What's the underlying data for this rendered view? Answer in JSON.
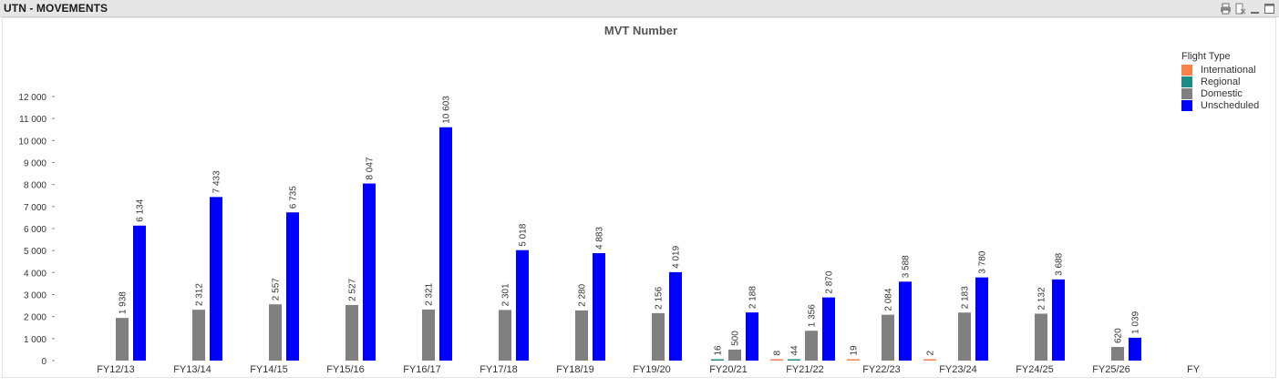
{
  "window": {
    "title": "UTN - MOVEMENTS",
    "icons": [
      "print-icon",
      "clear-selection-icon",
      "minimize-icon",
      "maximize-icon"
    ]
  },
  "chart_data": {
    "type": "bar",
    "title": "MVT Number",
    "xlabel": "FY",
    "ylabel": "",
    "legend_title": "Flight Type",
    "legend_position": "top-right",
    "ylim": [
      0,
      12000
    ],
    "yticks": [
      "0",
      "1 000",
      "2 000",
      "3 000",
      "4 000",
      "5 000",
      "6 000",
      "7 000",
      "8 000",
      "9 000",
      "10 000",
      "11 000",
      "12 000"
    ],
    "grid": false,
    "categories": [
      "FY12/13",
      "FY13/14",
      "FY14/15",
      "FY15/16",
      "FY16/17",
      "FY17/18",
      "FY18/19",
      "FY19/20",
      "FY20/21",
      "FY21/22",
      "FY22/23",
      "FY23/24",
      "FY24/25",
      "FY25/26"
    ],
    "series": [
      {
        "name": "International",
        "color": "#f5834a",
        "values": [
          null,
          null,
          null,
          null,
          null,
          null,
          null,
          null,
          null,
          8,
          19,
          2,
          null,
          null
        ],
        "labels": [
          "",
          "",
          "",
          "",
          "",
          "",
          "",
          "",
          "",
          "8",
          "19",
          "2",
          "",
          ""
        ]
      },
      {
        "name": "Regional",
        "color": "#1d8a84",
        "values": [
          null,
          null,
          null,
          null,
          null,
          null,
          null,
          null,
          16,
          44,
          null,
          null,
          null,
          null
        ],
        "labels": [
          "",
          "",
          "",
          "",
          "",
          "",
          "",
          "",
          "16",
          "44",
          "",
          "",
          "",
          ""
        ]
      },
      {
        "name": "Domestic",
        "color": "#808080",
        "values": [
          1938,
          2312,
          2557,
          2527,
          2321,
          2301,
          2280,
          2156,
          500,
          1356,
          2084,
          2183,
          2132,
          620
        ],
        "labels": [
          "1 938",
          "2 312",
          "2 557",
          "2 527",
          "2 321",
          "2 301",
          "2 280",
          "2 156",
          "500",
          "1 356",
          "2 084",
          "2 183",
          "2 132",
          "620"
        ]
      },
      {
        "name": "Unscheduled",
        "color": "#0000ff",
        "values": [
          6134,
          7433,
          6735,
          8047,
          10603,
          5018,
          4883,
          4019,
          2188,
          2870,
          3588,
          3780,
          3688,
          1039
        ],
        "labels": [
          "6 134",
          "7 433",
          "6 735",
          "8 047",
          "10 603",
          "5 018",
          "4 883",
          "4 019",
          "2 188",
          "2 870",
          "3 588",
          "3 780",
          "3 688",
          "1 039"
        ]
      }
    ]
  }
}
